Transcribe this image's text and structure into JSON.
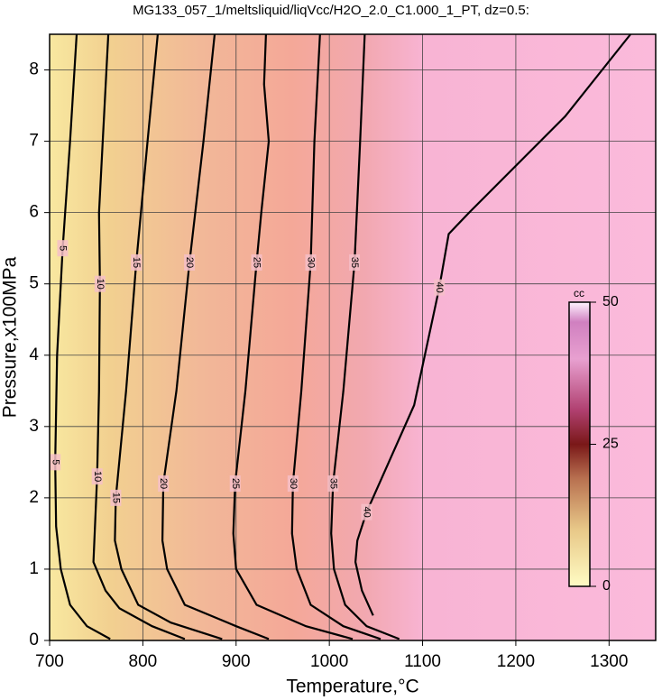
{
  "chart_data": {
    "type": "contour",
    "title": "MG133_057_1/meltsliquid/liqVcc/H2O_2.0_C1.000_1_PT, dz=0.5:",
    "x_label": "Temperature,°C",
    "y_label": "Pressure,x100MPa",
    "xlim": [
      700,
      1350
    ],
    "ylim": [
      0,
      8.5
    ],
    "xticks": [
      700,
      800,
      900,
      1000,
      1100,
      1200,
      1300
    ],
    "yticks": [
      0,
      1,
      2,
      3,
      4,
      5,
      6,
      7,
      8
    ],
    "grid": true,
    "contours": [
      {
        "level": 5,
        "x": [
          729,
          722,
          714,
          708,
          706,
          707,
          712,
          722,
          740,
          765
        ],
        "y": [
          8.5,
          7,
          5.5,
          4,
          2.5,
          1.6,
          1,
          0.5,
          0.2,
          0.02
        ]
      },
      {
        "level": 10,
        "x": [
          763,
          757,
          753,
          754,
          753,
          751,
          747,
          760,
          775,
          810,
          845
        ],
        "y": [
          8.5,
          7,
          6,
          5,
          3.5,
          2.3,
          1.1,
          0.7,
          0.45,
          0.2,
          0.02
        ]
      },
      {
        "level": 15,
        "x": [
          816,
          805,
          793,
          782,
          771,
          770,
          777,
          795,
          830,
          885
        ],
        "y": [
          8.5,
          7,
          5.3,
          3.5,
          2,
          1.4,
          1,
          0.5,
          0.25,
          0.02
        ]
      },
      {
        "level": 20,
        "x": [
          877,
          865,
          850,
          836,
          822,
          821,
          826,
          845,
          900,
          935
        ],
        "y": [
          8.5,
          7,
          5.3,
          3.5,
          2.2,
          1.4,
          1,
          0.5,
          0.2,
          0.02
        ]
      },
      {
        "level": 25,
        "x": [
          932,
          930,
          935,
          927,
          922,
          910,
          899,
          897,
          900,
          922,
          975,
          1025
        ],
        "y": [
          8.5,
          7.8,
          7,
          6,
          5.3,
          3.5,
          2.2,
          1.5,
          1,
          0.5,
          0.2,
          0.02
        ]
      },
      {
        "level": 30,
        "x": [
          990,
          984,
          980,
          970,
          961,
          960,
          965,
          980,
          1015,
          1055
        ],
        "y": [
          8.5,
          7,
          5.3,
          3.5,
          2.2,
          1.5,
          1,
          0.5,
          0.2,
          0.02
        ]
      },
      {
        "level": 35,
        "x": [
          1038,
          1033,
          1027,
          1015,
          1004,
          1002,
          1005,
          1017,
          1040,
          1075
        ],
        "y": [
          8.5,
          7,
          5.3,
          3.5,
          2.2,
          1.5,
          1,
          0.5,
          0.2,
          0.02
        ]
      },
      {
        "level": 40,
        "x": [
          1323,
          1253,
          1150,
          1128,
          1118,
          1091,
          1040,
          1030,
          1028,
          1035,
          1047
        ],
        "y": [
          8.5,
          7.35,
          6,
          5.7,
          4.95,
          3.3,
          1.8,
          1.4,
          1.1,
          0.7,
          0.35
        ]
      }
    ],
    "colorbar": {
      "label": "cc",
      "lim": [
        0,
        50
      ],
      "ticks": [
        0,
        25,
        50
      ]
    }
  }
}
